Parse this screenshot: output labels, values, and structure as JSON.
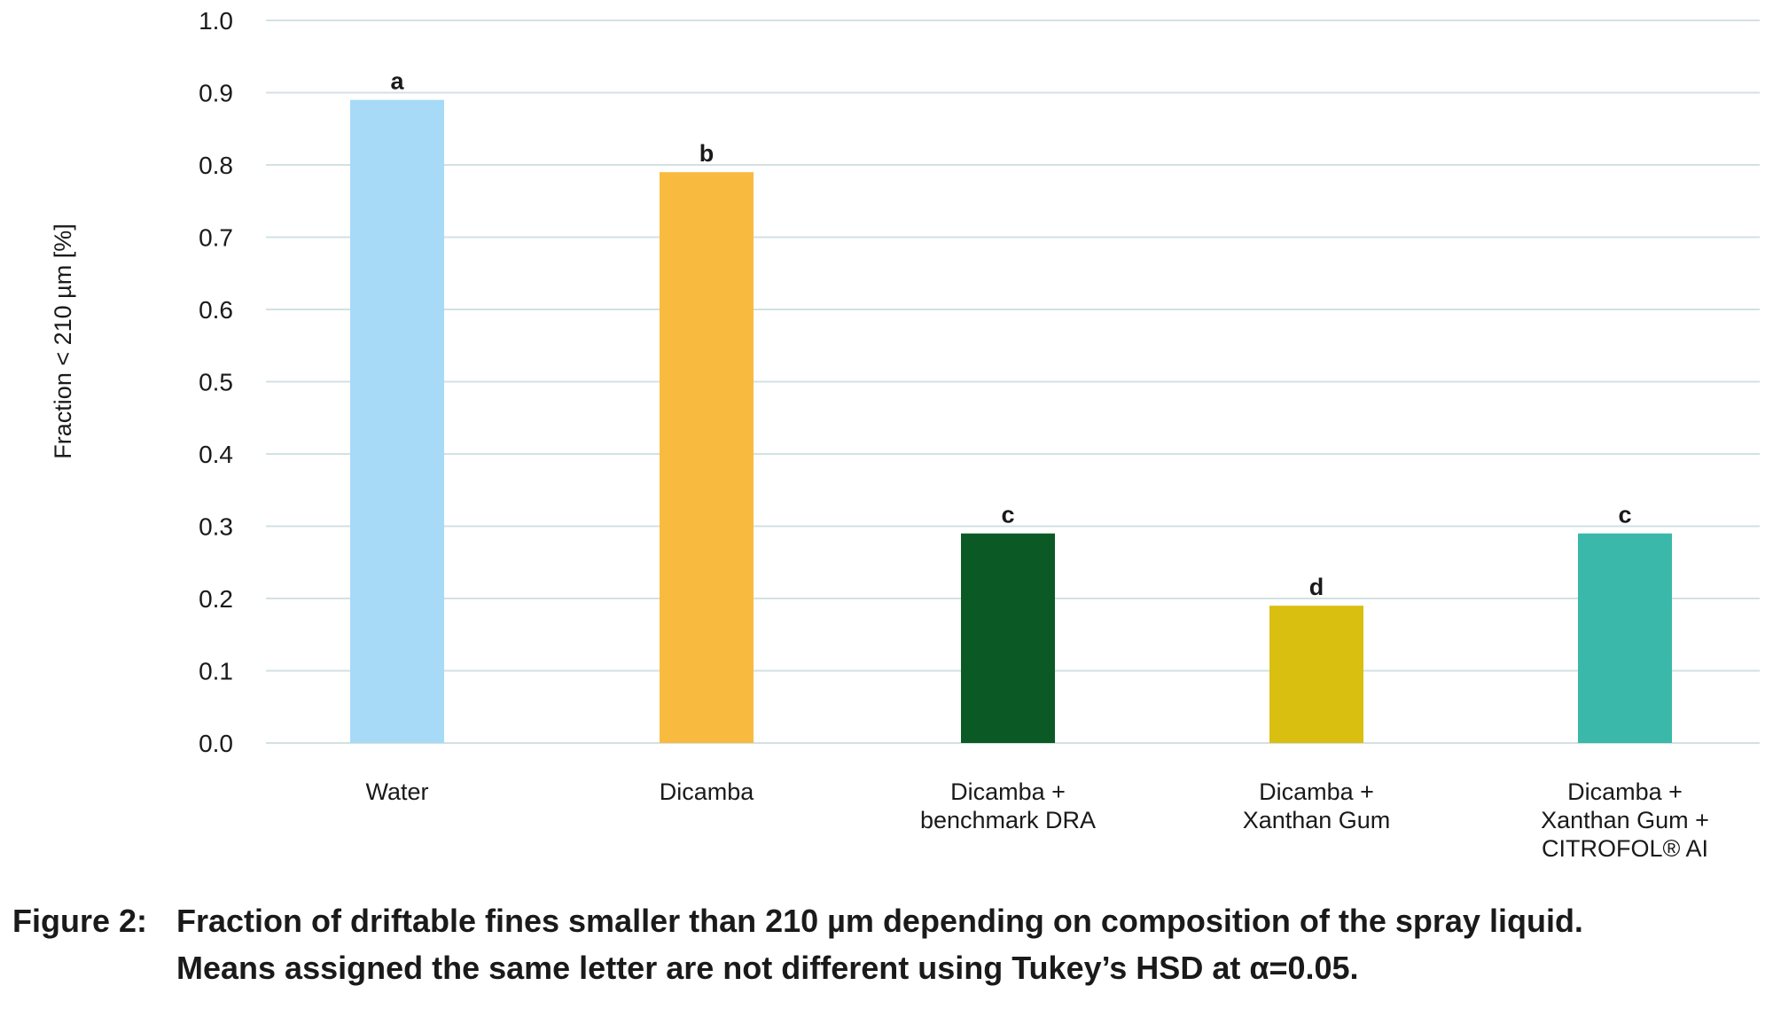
{
  "chart_data": {
    "type": "bar",
    "categories": [
      [
        "Water"
      ],
      [
        "Dicamba"
      ],
      [
        "Dicamba +",
        "benchmark DRA"
      ],
      [
        "Dicamba +",
        "Xanthan Gum"
      ],
      [
        "Dicamba +",
        "Xanthan Gum +",
        "CITROFOL® AI"
      ]
    ],
    "values": [
      0.89,
      0.79,
      0.29,
      0.19,
      0.29
    ],
    "data_labels": [
      "a",
      "b",
      "c",
      "d",
      "c"
    ],
    "colors": [
      "#a6daf7",
      "#f8bb40",
      "#0b5a26",
      "#d8bf10",
      "#3ab8aa"
    ],
    "ylabel": "Fraction < 210 µm [%]",
    "xlabel": "",
    "ylim": [
      0,
      1.0
    ],
    "yticks": [
      "0.0",
      "0.1",
      "0.2",
      "0.3",
      "0.4",
      "0.5",
      "0.6",
      "0.7",
      "0.8",
      "0.9",
      "1.0"
    ],
    "grid": true,
    "gridline_color": "#d3e1e3",
    "legend": "none"
  },
  "caption": {
    "label": "Figure 2:",
    "line1": "Fraction of driftable fines smaller than 210 µm depending on composition of the spray liquid.",
    "line2": "Means assigned the same letter are not different using Tukey’s HSD at α=0.05."
  }
}
